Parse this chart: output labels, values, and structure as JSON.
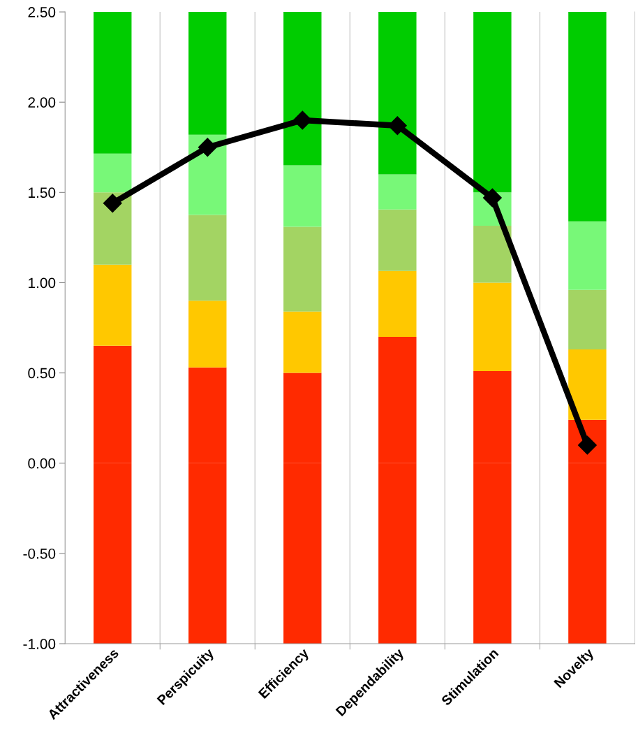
{
  "chart_data": {
    "type": "bar",
    "stacked": true,
    "categories": [
      "Attractiveness",
      "Perspicuity",
      "Efficiency",
      "Dependability",
      "Stimulation",
      "Novelty"
    ],
    "series": [
      {
        "color": "#ff2a00",
        "values": [
          -1.0,
          -1.0,
          -1.0,
          -1.0,
          -1.0,
          -1.0
        ]
      },
      {
        "color": "#ff2a00",
        "values": [
          0.65,
          0.53,
          0.5,
          0.7,
          0.51,
          0.24
        ]
      },
      {
        "color": "#ffc800",
        "values": [
          0.45,
          0.37,
          0.34,
          0.365,
          0.49,
          0.39
        ]
      },
      {
        "color": "#a3d463",
        "values": [
          0.4,
          0.475,
          0.47,
          0.34,
          0.315,
          0.33
        ]
      },
      {
        "color": "#78f878",
        "values": [
          0.215,
          0.445,
          0.34,
          0.195,
          0.185,
          0.38
        ]
      },
      {
        "color": "#00cc00",
        "values": [
          0.785,
          0.68,
          0.85,
          0.9,
          1.0,
          1.16
        ]
      },
      {
        "type": "line",
        "color": "#000000",
        "marker": "diamond",
        "values": [
          1.44,
          1.75,
          1.9,
          1.87,
          1.47,
          0.1
        ]
      }
    ],
    "ylim": [
      -1.0,
      2.5
    ],
    "yticks": [
      {
        "value": -1,
        "label": "-1.00"
      },
      {
        "value": -0.5,
        "label": "-0.50"
      },
      {
        "value": 0,
        "label": "0.00"
      },
      {
        "value": 0.5,
        "label": "0.50"
      },
      {
        "value": 1,
        "label": "1.00"
      },
      {
        "value": 1.5,
        "label": "1.50"
      },
      {
        "value": 2,
        "label": "2.00"
      },
      {
        "value": 2.5,
        "label": "2.50"
      }
    ],
    "grid": "x",
    "legend": false
  }
}
